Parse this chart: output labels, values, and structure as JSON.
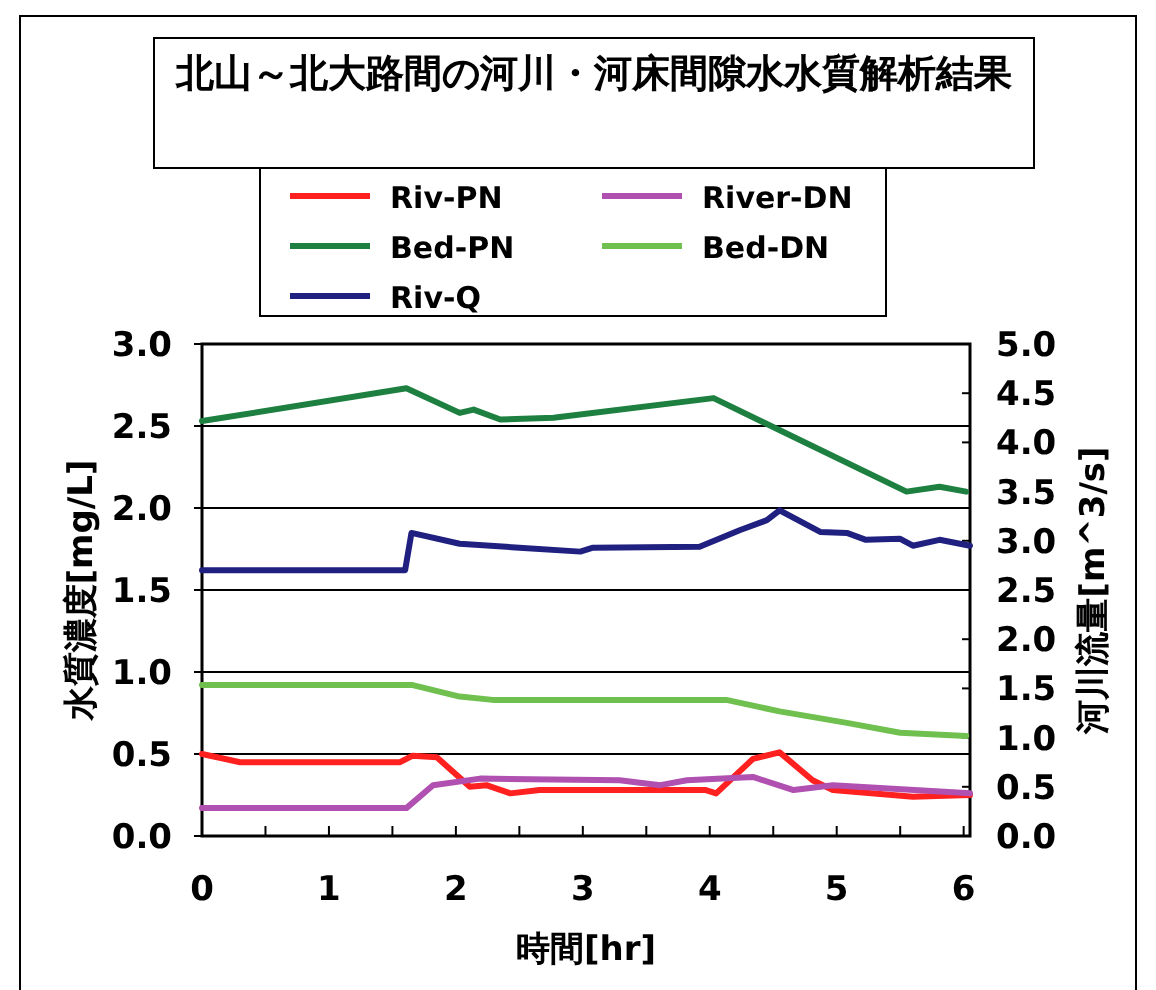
{
  "chart_data": {
    "type": "line",
    "title": "北山～北大路間の河川・河床間隙水水質解析結果",
    "xlabel": "時間[hr]",
    "ylabel": "水質濃度[mg/L]",
    "y2label": "河川流量[m^3/s]",
    "xlim": [
      0,
      6.05
    ],
    "xticks": [
      0,
      {
        "value": 0.5,
        "label": null
      },
      1,
      {
        "value": 1.5,
        "label": null
      },
      2,
      {
        "value": 2.5,
        "label": null
      },
      3,
      {
        "value": 3.5,
        "label": null
      },
      4,
      {
        "value": 4.5,
        "label": null
      },
      5,
      {
        "value": 5.5,
        "label": null
      },
      6
    ],
    "ylim": [
      0,
      3
    ],
    "yticks": [
      {
        "value": 0,
        "label": "0.0"
      },
      0.5,
      {
        "value": 1,
        "label": "1.0"
      },
      1.5,
      {
        "value": 2,
        "label": "2.0"
      },
      2.5,
      {
        "value": 3,
        "label": "3.0"
      }
    ],
    "y2lim": [
      0,
      5
    ],
    "y2ticks": [
      {
        "value": 0,
        "label": "0.0"
      },
      0.5,
      {
        "value": 1,
        "label": "1.0"
      },
      1.5,
      {
        "value": 2,
        "label": "2.0"
      },
      2.5,
      {
        "value": 3,
        "label": "3.0"
      },
      3.5,
      {
        "value": 4,
        "label": "4.0"
      },
      4.5,
      {
        "value": 5,
        "label": "5.0"
      }
    ],
    "grid": "y",
    "legend": "top",
    "marker": "none",
    "line_style": "solid",
    "series": [
      {
        "name": "Riv-PN",
        "color": "#ff2020",
        "x": [
          0,
          0.3,
          1.56,
          1.66,
          1.85,
          2.11,
          2.24,
          2.43,
          2.66,
          3.97,
          4.05,
          4.34,
          4.55,
          4.81,
          4.97,
          5.6,
          6.05
        ],
        "values": [
          0.5,
          0.45,
          0.45,
          0.49,
          0.48,
          0.3,
          0.31,
          0.26,
          0.28,
          0.28,
          0.26,
          0.47,
          0.51,
          0.34,
          0.28,
          0.24,
          0.25
        ]
      },
      {
        "name": "River-DN",
        "color": "#b050b0",
        "x": [
          0,
          1.61,
          1.82,
          2.19,
          3.29,
          3.61,
          3.82,
          4.34,
          4.66,
          4.97,
          6.05
        ],
        "values": [
          0.17,
          0.17,
          0.31,
          0.35,
          0.34,
          0.31,
          0.34,
          0.36,
          0.28,
          0.31,
          0.26
        ]
      },
      {
        "name": "Bed-PN",
        "color": "#1e8040",
        "x": [
          0,
          1.61,
          2.03,
          2.14,
          2.35,
          2.77,
          4.03,
          5.55,
          5.81,
          6.02
        ],
        "values": [
          2.53,
          2.73,
          2.58,
          2.6,
          2.54,
          2.55,
          2.67,
          2.1,
          2.13,
          2.1
        ]
      },
      {
        "name": "Bed-DN",
        "color": "#70c050",
        "x": [
          0,
          1.66,
          2.03,
          2.29,
          4.13,
          4.55,
          5.08,
          5.5,
          6.02
        ],
        "values": [
          0.92,
          0.92,
          0.85,
          0.83,
          0.83,
          0.76,
          0.69,
          0.63,
          0.61
        ]
      },
      {
        "name": "Riv-Q",
        "color": "#202080",
        "axis": "y2",
        "x": [
          0,
          1.6,
          1.65,
          2.03,
          2.5,
          2.98,
          3.08,
          3.92,
          4.24,
          4.45,
          4.55,
          4.87,
          5.08,
          5.23,
          5.5,
          5.6,
          5.81,
          6.05
        ],
        "values": [
          2.7,
          2.7,
          3.08,
          2.97,
          2.93,
          2.89,
          2.93,
          2.94,
          3.11,
          3.21,
          3.31,
          3.09,
          3.08,
          3.01,
          3.02,
          2.95,
          3.01,
          2.95
        ]
      }
    ]
  }
}
